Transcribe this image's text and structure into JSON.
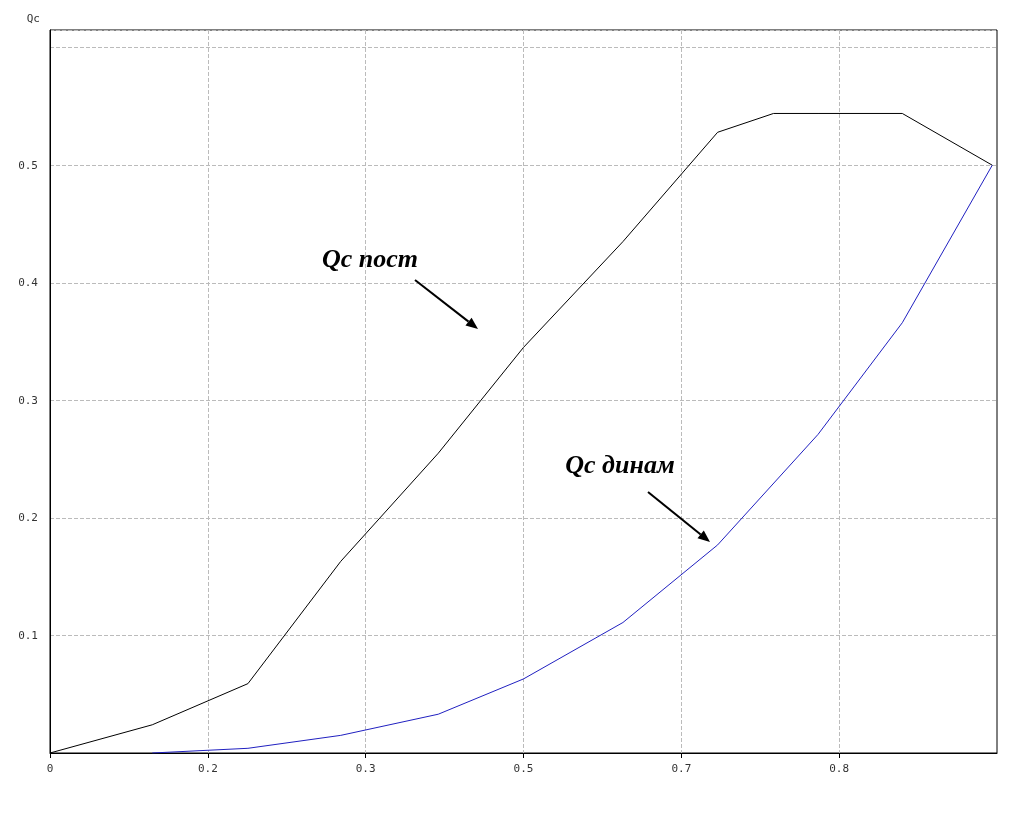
{
  "chart_data": {
    "type": "line",
    "ylabel": "Qc",
    "x": [
      0,
      0.108,
      0.209,
      0.307,
      0.41,
      0.5,
      0.605,
      0.705,
      0.764,
      0.811,
      0.9,
      0.995
    ],
    "series": [
      {
        "color": "#000000",
        "values": [
          0,
          0.024,
          0.059,
          0.163,
          0.255,
          0.345,
          0.435,
          0.528,
          0.544,
          0.544,
          0.544,
          0.5
        ]
      },
      {
        "color": "#2020c0",
        "values": [
          null,
          0,
          0.004,
          0.015,
          0.033,
          0.063,
          0.111,
          0.177,
          null,
          0.271,
          0.366,
          0.5
        ]
      }
    ],
    "xlim": [
      0,
      1
    ],
    "ylim": [
      0,
      0.615
    ],
    "xticks": [
      0,
      {
        "value": 0.1667,
        "label": "0.2"
      },
      {
        "value": 0.3333,
        "label": "0.3"
      },
      0.5,
      {
        "value": 0.6667,
        "label": "0.7"
      },
      {
        "value": 0.8333,
        "label": "0.8"
      }
    ],
    "yticks": [
      0.1,
      0.2,
      0.3,
      0.4,
      0.5
    ],
    "grid": true,
    "marker": "none",
    "line_style": "solid",
    "annotations": [
      "Qc пост",
      "Qc динам"
    ]
  }
}
